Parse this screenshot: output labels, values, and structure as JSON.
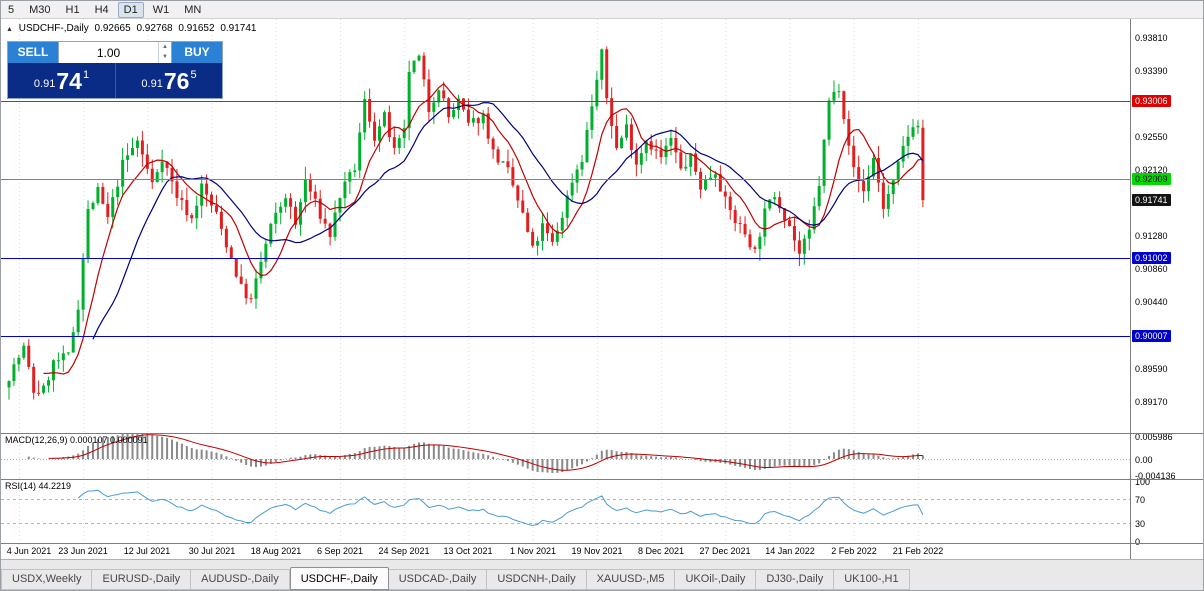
{
  "toolbar": {
    "timeframes": [
      {
        "label": "5",
        "selected": false
      },
      {
        "label": "M30",
        "selected": false
      },
      {
        "label": "H1",
        "selected": false
      },
      {
        "label": "H4",
        "selected": false
      },
      {
        "label": "D1",
        "selected": true
      },
      {
        "label": "W1",
        "selected": false
      },
      {
        "label": "MN",
        "selected": false
      }
    ]
  },
  "chart": {
    "collapse_icon": "▲",
    "title": "USDCHF-,Daily",
    "ohlc": {
      "open": "0.92665",
      "high": "0.92768",
      "low": "0.91652",
      "close": "0.91741"
    }
  },
  "trade_panel": {
    "sell_label": "SELL",
    "buy_label": "BUY",
    "volume": "1.00",
    "sell_price": {
      "small": "0.91",
      "big": "74",
      "sup": "1"
    },
    "buy_price": {
      "small": "0.91",
      "big": "76",
      "sup": "5"
    }
  },
  "price_axis": {
    "labels": [
      {
        "text": "0.93810",
        "price": 0.9381,
        "style": "plain"
      },
      {
        "text": "0.93390",
        "price": 0.9339,
        "style": "plain"
      },
      {
        "text": "0.93006",
        "price": 0.93006,
        "style": "red"
      },
      {
        "text": "0.92550",
        "price": 0.9255,
        "style": "plain"
      },
      {
        "text": "0.92120",
        "price": 0.9212,
        "style": "plain"
      },
      {
        "text": "0.92009",
        "price": 0.92009,
        "style": "green"
      },
      {
        "text": "0.91741",
        "price": 0.91741,
        "style": "current"
      },
      {
        "text": "0.91280",
        "price": 0.9128,
        "style": "plain"
      },
      {
        "text": "0.91002",
        "price": 0.91002,
        "style": "blue"
      },
      {
        "text": "0.90860",
        "price": 0.9086,
        "style": "plain"
      },
      {
        "text": "0.90440",
        "price": 0.9044,
        "style": "plain"
      },
      {
        "text": "0.90007",
        "price": 0.90007,
        "style": "blue"
      },
      {
        "text": "0.89590",
        "price": 0.8959,
        "style": "plain"
      },
      {
        "text": "0.89170",
        "price": 0.8917,
        "style": "plain"
      }
    ]
  },
  "indicators": {
    "macd": {
      "label": "MACD(12,26,9) 0.000107 0.000091",
      "axis": [
        {
          "text": "0.005986",
          "v": 0.005986
        },
        {
          "text": "0.00",
          "v": 0
        },
        {
          "text": "-0.004136",
          "v": -0.004136
        }
      ]
    },
    "rsi": {
      "label": "RSI(14) 44.2219",
      "axis": [
        {
          "text": "100",
          "v": 100
        },
        {
          "text": "70",
          "v": 70
        },
        {
          "text": "30",
          "v": 30
        },
        {
          "text": "0",
          "v": 0
        }
      ]
    }
  },
  "time_axis": {
    "labels": [
      {
        "text": "4 Jun 2021",
        "i": 2
      },
      {
        "text": "23 Jun 2021",
        "i": 15
      },
      {
        "text": "12 Jul 2021",
        "i": 28
      },
      {
        "text": "30 Jul 2021",
        "i": 41
      },
      {
        "text": "18 Aug 2021",
        "i": 54
      },
      {
        "text": "6 Sep 2021",
        "i": 67
      },
      {
        "text": "24 Sep 2021",
        "i": 80
      },
      {
        "text": "13 Oct 2021",
        "i": 93
      },
      {
        "text": "1 Nov 2021",
        "i": 106
      },
      {
        "text": "19 Nov 2021",
        "i": 119
      },
      {
        "text": "8 Dec 2021",
        "i": 132
      },
      {
        "text": "27 Dec 2021",
        "i": 145
      },
      {
        "text": "14 Jan 2022",
        "i": 158
      },
      {
        "text": "2 Feb 2022",
        "i": 171
      },
      {
        "text": "21 Feb 2022",
        "i": 184
      }
    ]
  },
  "tabs": [
    {
      "label": "USDX,Weekly",
      "active": false
    },
    {
      "label": "EURUSD-,Daily",
      "active": false
    },
    {
      "label": "AUDUSD-,Daily",
      "active": false
    },
    {
      "label": "USDCHF-,Daily",
      "active": true
    },
    {
      "label": "USDCAD-,Daily",
      "active": false
    },
    {
      "label": "USDCNH-,Daily",
      "active": false
    },
    {
      "label": "XAUUSD-,M5",
      "active": false
    },
    {
      "label": "UKOil-,Daily",
      "active": false
    },
    {
      "label": "DJ30-,Daily",
      "active": false
    },
    {
      "label": "UK100-,H1",
      "active": false
    }
  ],
  "chart_data": {
    "type": "candlestick",
    "symbol": "USDCHF-,Daily",
    "bars": 186,
    "x0": 8,
    "dx": 4.94,
    "ylim": [
      0.88768,
      0.94053
    ],
    "last_bar": {
      "o": 0.92665,
      "h": 0.92768,
      "l": 0.91652,
      "c": 0.91741
    },
    "anchors": [
      [
        0,
        0.895
      ],
      [
        3,
        0.8985
      ],
      [
        5,
        0.893
      ],
      [
        7,
        0.8932
      ],
      [
        9,
        0.8966
      ],
      [
        12,
        0.8975
      ],
      [
        14,
        0.904
      ],
      [
        16,
        0.916
      ],
      [
        18,
        0.9185
      ],
      [
        20,
        0.915
      ],
      [
        23,
        0.922
      ],
      [
        26,
        0.925
      ],
      [
        29,
        0.9195
      ],
      [
        31,
        0.923
      ],
      [
        34,
        0.918
      ],
      [
        37,
        0.915
      ],
      [
        39,
        0.9192
      ],
      [
        42,
        0.9155
      ],
      [
        45,
        0.91
      ],
      [
        47,
        0.9062
      ],
      [
        49,
        0.9045
      ],
      [
        51,
        0.9095
      ],
      [
        53,
        0.914
      ],
      [
        56,
        0.918
      ],
      [
        58,
        0.9142
      ],
      [
        60,
        0.92
      ],
      [
        63,
        0.9155
      ],
      [
        65,
        0.913
      ],
      [
        67,
        0.918
      ],
      [
        70,
        0.9215
      ],
      [
        72,
        0.93
      ],
      [
        74,
        0.9255
      ],
      [
        76,
        0.928
      ],
      [
        78,
        0.9235
      ],
      [
        80,
        0.926
      ],
      [
        81,
        0.934
      ],
      [
        83,
        0.9355
      ],
      [
        85,
        0.929
      ],
      [
        87,
        0.932
      ],
      [
        89,
        0.928
      ],
      [
        91,
        0.93
      ],
      [
        93,
        0.927
      ],
      [
        96,
        0.9282
      ],
      [
        98,
        0.9235
      ],
      [
        101,
        0.921
      ],
      [
        104,
        0.9155
      ],
      [
        106,
        0.911
      ],
      [
        108,
        0.914
      ],
      [
        110,
        0.9118
      ],
      [
        112,
        0.9155
      ],
      [
        114,
        0.92
      ],
      [
        116,
        0.9228
      ],
      [
        118,
        0.9295
      ],
      [
        120,
        0.936
      ],
      [
        121,
        0.9305
      ],
      [
        123,
        0.924
      ],
      [
        125,
        0.9268
      ],
      [
        127,
        0.9222
      ],
      [
        129,
        0.9252
      ],
      [
        132,
        0.9228
      ],
      [
        134,
        0.9252
      ],
      [
        136,
        0.9212
      ],
      [
        138,
        0.9228
      ],
      [
        140,
        0.9192
      ],
      [
        143,
        0.9212
      ],
      [
        145,
        0.9172
      ],
      [
        147,
        0.9148
      ],
      [
        149,
        0.9132
      ],
      [
        151,
        0.9108
      ],
      [
        153,
        0.9158
      ],
      [
        155,
        0.9182
      ],
      [
        158,
        0.9142
      ],
      [
        160,
        0.9105
      ],
      [
        162,
        0.9132
      ],
      [
        164,
        0.9195
      ],
      [
        166,
        0.93
      ],
      [
        168,
        0.932
      ],
      [
        170,
        0.9248
      ],
      [
        171,
        0.9212
      ],
      [
        173,
        0.9185
      ],
      [
        175,
        0.9228
      ],
      [
        177,
        0.9165
      ],
      [
        179,
        0.9195
      ],
      [
        181,
        0.924
      ],
      [
        183,
        0.9272
      ],
      [
        184,
        0.9268
      ],
      [
        185,
        0.91741
      ]
    ],
    "hlines": [
      {
        "price": 0.93006,
        "color": "#ee1111",
        "name": "resistance-line"
      },
      {
        "price": 0.92009,
        "color": "#00dd00",
        "name": "mid-support-line"
      },
      {
        "price": 0.91002,
        "color": "#0000cc",
        "name": "support-line-1"
      },
      {
        "price": 0.90007,
        "color": "#0000cc",
        "name": "support-line-2"
      }
    ],
    "colors": {
      "bull": "#00b02d",
      "bear": "#e02020",
      "ma_fast": "#c00000",
      "ma_slow": "#00007a",
      "macd_hist": "#8a8a8a",
      "macd_signal": "#c00000",
      "rsi": "#4a9cd4",
      "rsi_levels": "#9db8d2",
      "grid": "#dcdcdc"
    }
  }
}
